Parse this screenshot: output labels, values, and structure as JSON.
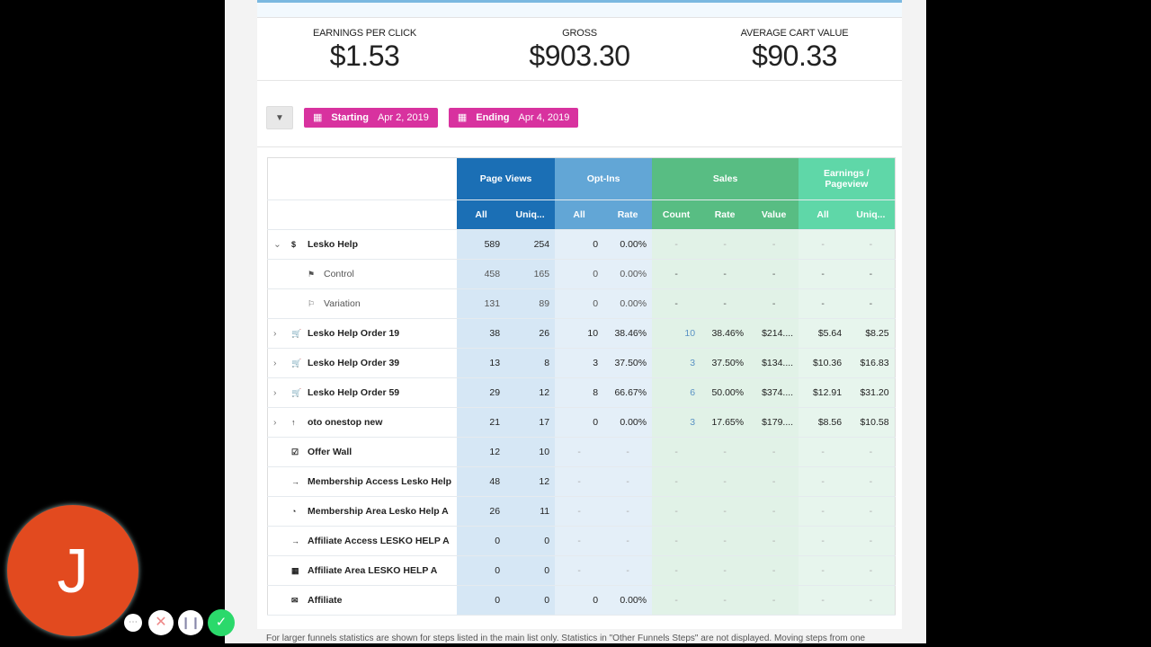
{
  "metrics": [
    {
      "label": "EARNINGS PER CLICK",
      "value": "$1.53"
    },
    {
      "label": "GROSS",
      "value": "$903.30"
    },
    {
      "label": "AVERAGE CART VALUE",
      "value": "$90.33"
    }
  ],
  "filters": {
    "starting_label": "Starting",
    "starting_date": "Apr 2, 2019",
    "ending_label": "Ending",
    "ending_date": "Apr 4, 2019"
  },
  "table": {
    "groups": [
      "Page Views",
      "Opt-Ins",
      "Sales",
      "Earnings / Pageview"
    ],
    "subheaders": [
      "All",
      "Uniq...",
      "All",
      "Rate",
      "Count",
      "Rate",
      "Value",
      "All",
      "Uniq..."
    ],
    "rows": [
      {
        "name": "Lesko Help",
        "icon": "dollar-icon",
        "caret": "down",
        "values": [
          "589",
          "254",
          "0",
          "0.00%",
          "-",
          "-",
          "-",
          "-",
          "-"
        ]
      },
      {
        "name": "Control",
        "icon": "flag-icon",
        "sub": true,
        "values": [
          "458",
          "165",
          "0",
          "0.00%",
          "-",
          "-",
          "-",
          "-",
          "-"
        ]
      },
      {
        "name": "Variation",
        "icon": "flag-outline-icon",
        "sub": true,
        "values": [
          "131",
          "89",
          "0",
          "0.00%",
          "-",
          "-",
          "-",
          "-",
          "-"
        ]
      },
      {
        "name": "Lesko Help Order 19",
        "icon": "cart-icon",
        "caret": "right",
        "values": [
          "38",
          "26",
          "10",
          "38.46%",
          "10",
          "38.46%",
          "$214....",
          "$5.64",
          "$8.25"
        ]
      },
      {
        "name": "Lesko Help Order 39",
        "icon": "cart-icon",
        "caret": "right",
        "values": [
          "13",
          "8",
          "3",
          "37.50%",
          "3",
          "37.50%",
          "$134....",
          "$10.36",
          "$16.83"
        ]
      },
      {
        "name": "Lesko Help Order 59",
        "icon": "cart-icon",
        "caret": "right",
        "values": [
          "29",
          "12",
          "8",
          "66.67%",
          "6",
          "50.00%",
          "$374....",
          "$12.91",
          "$31.20"
        ]
      },
      {
        "name": "oto onestop new",
        "icon": "arrow-up-icon",
        "caret": "right",
        "values": [
          "21",
          "17",
          "0",
          "0.00%",
          "3",
          "17.65%",
          "$179....",
          "$8.56",
          "$10.58"
        ]
      },
      {
        "name": "Offer Wall",
        "icon": "checkbox-icon",
        "values": [
          "12",
          "10",
          "-",
          "-",
          "-",
          "-",
          "-",
          "-",
          "-"
        ]
      },
      {
        "name": "Membership Access Lesko Help",
        "icon": "sign-in-icon",
        "values": [
          "48",
          "12",
          "-",
          "-",
          "-",
          "-",
          "-",
          "-",
          "-"
        ]
      },
      {
        "name": "Membership Area Lesko Help A",
        "icon": "dashboard-icon",
        "values": [
          "26",
          "11",
          "-",
          "-",
          "-",
          "-",
          "-",
          "-",
          "-"
        ]
      },
      {
        "name": "Affiliate Access LESKO HELP A",
        "icon": "sign-in-icon",
        "values": [
          "0",
          "0",
          "-",
          "-",
          "-",
          "-",
          "-",
          "-",
          "-"
        ]
      },
      {
        "name": "Affiliate Area LESKO HELP A",
        "icon": "calendar-icon",
        "values": [
          "0",
          "0",
          "-",
          "-",
          "-",
          "-",
          "-",
          "-",
          "-"
        ]
      },
      {
        "name": "Affiliate",
        "icon": "envelope-icon",
        "values": [
          "0",
          "0",
          "0",
          "0.00%",
          "-",
          "-",
          "-",
          "-",
          "-"
        ]
      }
    ]
  },
  "footer": "For larger funnels statistics are shown for steps listed in the main list only. Statistics in \"Other Funnels Steps\" are not displayed. Moving steps from one",
  "avatar": {
    "initial": "J",
    "color": "#e24a1f"
  },
  "colors": {
    "page_views": "#1b6fb5",
    "opt_ins": "#62a6d6",
    "sales": "#58bd83",
    "earnings": "#5fd7a8",
    "date_button": "#d8329f"
  }
}
